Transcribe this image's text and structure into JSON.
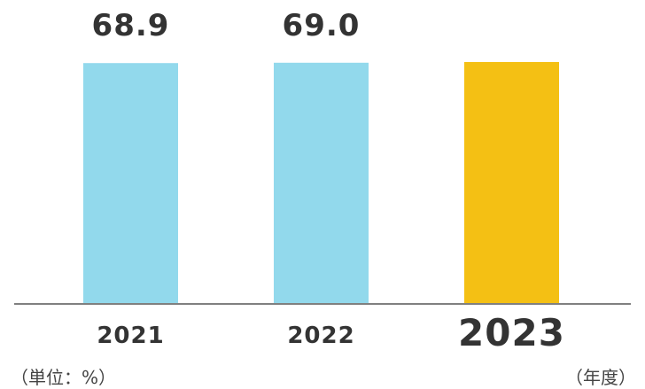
{
  "chart_data": {
    "type": "bar",
    "categories": [
      "2021",
      "2022",
      "2023"
    ],
    "values": [
      68.9,
      69.0,
      69.2
    ],
    "value_labels": [
      "68.9",
      "69.0",
      ""
    ],
    "highlight_category": "2023",
    "unit_label": "（単位：%）",
    "x_unit_label": "（年度）",
    "title": "",
    "xlabel": "",
    "ylabel": "",
    "ylim": [
      0,
      69.2
    ],
    "grid": false,
    "legend": "none"
  },
  "colors": {
    "bar_default": "#92d9ec",
    "bar_highlight": "#f4c014",
    "value_text": "#333333",
    "category_text": "#333333",
    "highlight_category_text": "#2c3f92",
    "axis_line": "#808080"
  }
}
